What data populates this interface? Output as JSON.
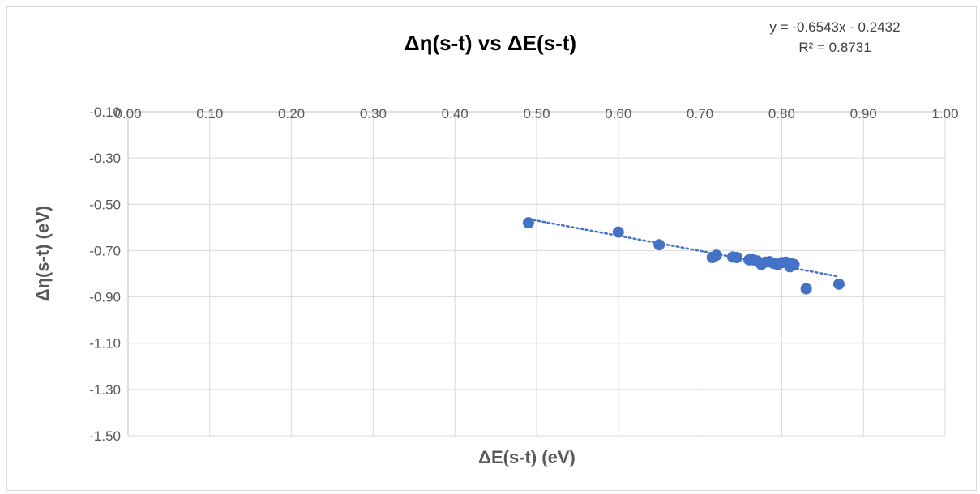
{
  "chart_data": {
    "type": "scatter",
    "title": "Δη(s-t) vs ΔE(s-t)",
    "xlabel": "ΔE(s-t) (eV)",
    "ylabel": "Δη(s-t) (eV)",
    "xlim": [
      0,
      1
    ],
    "ylim": [
      -1.5,
      -0.1
    ],
    "x_ticks": [
      "0.00",
      "0.10",
      "0.20",
      "0.30",
      "0.40",
      "0.50",
      "0.60",
      "0.70",
      "0.80",
      "0.90",
      "1.00"
    ],
    "y_ticks": [
      "-0.10",
      "-0.30",
      "-0.50",
      "-0.70",
      "-0.90",
      "-1.10",
      "-1.30",
      "-1.50"
    ],
    "grid": true,
    "legend": "none",
    "marker_color": "#4472c4",
    "trendline": {
      "type": "linear",
      "style": "dotted",
      "slope": -0.6543,
      "intercept": -0.2432,
      "x_range": [
        0.49,
        0.87
      ],
      "equation_text": "y = -0.6543x - 0.2432",
      "r2_text": "R² = 0.8731"
    },
    "points": [
      {
        "x": 0.49,
        "y": -0.58
      },
      {
        "x": 0.6,
        "y": -0.62
      },
      {
        "x": 0.65,
        "y": -0.675
      },
      {
        "x": 0.715,
        "y": -0.73
      },
      {
        "x": 0.72,
        "y": -0.72
      },
      {
        "x": 0.74,
        "y": -0.728
      },
      {
        "x": 0.745,
        "y": -0.73
      },
      {
        "x": 0.76,
        "y": -0.74
      },
      {
        "x": 0.765,
        "y": -0.74
      },
      {
        "x": 0.77,
        "y": -0.745
      },
      {
        "x": 0.775,
        "y": -0.76
      },
      {
        "x": 0.78,
        "y": -0.75
      },
      {
        "x": 0.785,
        "y": -0.748
      },
      {
        "x": 0.79,
        "y": -0.755
      },
      {
        "x": 0.795,
        "y": -0.76
      },
      {
        "x": 0.8,
        "y": -0.752
      },
      {
        "x": 0.805,
        "y": -0.75
      },
      {
        "x": 0.81,
        "y": -0.77
      },
      {
        "x": 0.812,
        "y": -0.757
      },
      {
        "x": 0.815,
        "y": -0.76
      },
      {
        "x": 0.83,
        "y": -0.865
      },
      {
        "x": 0.87,
        "y": -0.845
      }
    ]
  }
}
